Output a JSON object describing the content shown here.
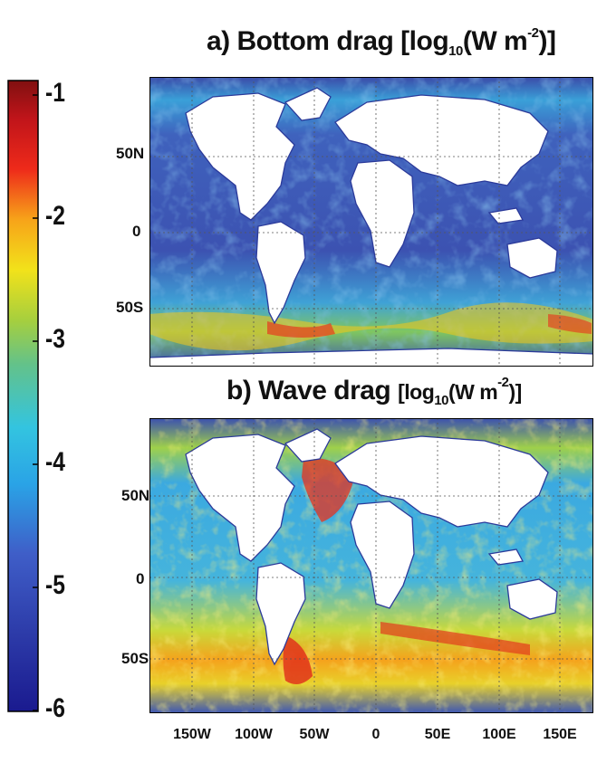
{
  "colorbar": {
    "ticks": [
      "-1",
      "-2",
      "-3",
      "-4",
      "-5",
      "-6"
    ],
    "range": [
      -6,
      -1
    ],
    "colormap": "jet",
    "colors": [
      "#00008f",
      "#0000ff",
      "#00ffff",
      "#ffff00",
      "#ff0000",
      "#800000"
    ]
  },
  "panels": [
    {
      "title_prefix": "a) Bottom drag ",
      "title_unit_open": "[log",
      "title_sub": "10",
      "title_mid": "(W m",
      "title_sup": "-2",
      "title_close": ")]",
      "lat_ticks": [
        "50N",
        "0",
        "50S"
      ]
    },
    {
      "title_prefix": "b) Wave drag ",
      "title_unit_open": "[log",
      "title_sub": "10",
      "title_mid": "(W m",
      "title_sup": "-2",
      "title_close": ")]",
      "lat_ticks": [
        "50N",
        "0",
        "50S"
      ]
    }
  ],
  "lon_ticks": [
    "150W",
    "100W",
    "50W",
    "0",
    "50E",
    "100E",
    "150E"
  ],
  "land_color": "#ffffff",
  "ocean_base_color_a": "#3d4fb0",
  "ocean_base_color_b": "#3fa6d9"
}
